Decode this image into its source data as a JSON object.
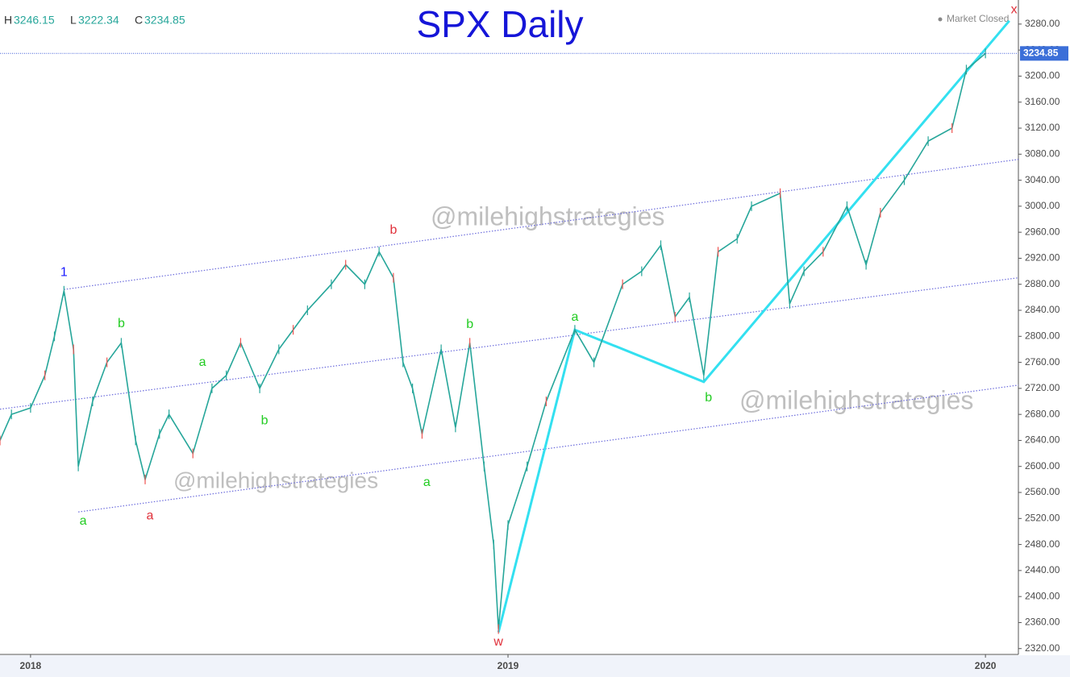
{
  "chart_data": {
    "type": "line",
    "title": "SPX Daily",
    "header": {
      "high_label": "H",
      "high": 3246.15,
      "low_label": "L",
      "low": 3222.34,
      "close_label": "C",
      "close": 3234.85
    },
    "status": "Market Closed",
    "last_price": 3234.85,
    "watermarks": [
      "@milehighstrategies",
      "@milehighstrategies",
      "@milehighstrategies"
    ],
    "x": [
      2017.936,
      2017.96,
      2018.0,
      2018.03,
      2018.05,
      2018.07,
      2018.09,
      2018.1,
      2018.13,
      2018.16,
      2018.19,
      2018.22,
      2018.24,
      2018.27,
      2018.29,
      2018.34,
      2018.38,
      2018.41,
      2018.44,
      2018.48,
      2018.52,
      2018.55,
      2018.58,
      2018.63,
      2018.66,
      2018.7,
      2018.73,
      2018.76,
      2018.78,
      2018.8,
      2018.82,
      2018.86,
      2018.89,
      2018.92,
      2018.95,
      2018.97,
      2018.98,
      2019.0,
      2019.04,
      2019.08,
      2019.14,
      2019.18,
      2019.24,
      2019.28,
      2019.32,
      2019.35,
      2019.38,
      2019.41,
      2019.44,
      2019.48,
      2019.51,
      2019.57,
      2019.59,
      2019.62,
      2019.66,
      2019.71,
      2019.75,
      2019.78,
      2019.83,
      2019.88,
      2019.93,
      2019.96,
      2020.0
    ],
    "values": [
      2640,
      2680,
      2690,
      2740,
      2800,
      2870,
      2780,
      2600,
      2700,
      2760,
      2790,
      2640,
      2580,
      2650,
      2680,
      2620,
      2720,
      2740,
      2790,
      2720,
      2780,
      2810,
      2840,
      2880,
      2910,
      2880,
      2930,
      2890,
      2760,
      2720,
      2650,
      2780,
      2660,
      2790,
      2600,
      2480,
      2350,
      2510,
      2600,
      2700,
      2810,
      2760,
      2880,
      2900,
      2940,
      2830,
      2860,
      2740,
      2930,
      2950,
      3000,
      3020,
      2850,
      2900,
      2930,
      3000,
      2910,
      2990,
      3040,
      3100,
      3120,
      3210,
      3234.85
    ],
    "color": "#26a69a",
    "xlim": [
      2017.936,
      2020.069
    ],
    "xticks": [
      2018,
      2019,
      2020
    ],
    "ylim": [
      2311,
      3317
    ],
    "yticks": [
      {
        "value": 2320,
        "label": "2320.00"
      },
      {
        "value": 2360,
        "label": "2360.00"
      },
      {
        "value": 2400,
        "label": "2400.00"
      },
      {
        "value": 2440,
        "label": "2440.00"
      },
      {
        "value": 2480,
        "label": "2480.00"
      },
      {
        "value": 2520,
        "label": "2520.00"
      },
      {
        "value": 2560,
        "label": "2560.00"
      },
      {
        "value": 2600,
        "label": "2600.00"
      },
      {
        "value": 2640,
        "label": "2640.00"
      },
      {
        "value": 2680,
        "label": "2680.00"
      },
      {
        "value": 2720,
        "label": "2720.00"
      },
      {
        "value": 2760,
        "label": "2760.00"
      },
      {
        "value": 2800,
        "label": "2800.00"
      },
      {
        "value": 2840,
        "label": "2840.00"
      },
      {
        "value": 2880,
        "label": "2880.00"
      },
      {
        "value": 2920,
        "label": "2920.00"
      },
      {
        "value": 2960,
        "label": "2960.00"
      },
      {
        "value": 3000,
        "label": "3000.00"
      },
      {
        "value": 3040,
        "label": "3040.00"
      },
      {
        "value": 3080,
        "label": "3080.00"
      },
      {
        "value": 3120,
        "label": "3120.00"
      },
      {
        "value": 3160,
        "label": "3160.00"
      },
      {
        "value": 3200,
        "label": "3200.00"
      },
      {
        "value": 3240,
        "label": "3240.00"
      },
      {
        "value": 3280,
        "label": "3280.00"
      }
    ],
    "trendlines": [
      {
        "color": "#6b6bdc",
        "style": "dotted",
        "x": [
          2018.07,
          2020.069
        ],
        "y": [
          2872,
          3072
        ]
      },
      {
        "color": "#6b6bdc",
        "style": "dotted",
        "x": [
          2017.936,
          2020.069
        ],
        "y": [
          2688,
          2890
        ]
      },
      {
        "color": "#6b6bdc",
        "style": "dotted",
        "x": [
          2018.1,
          2020.069
        ],
        "y": [
          2530,
          2725
        ]
      },
      {
        "color": "#33e0f0",
        "style": "solid",
        "x": [
          2018.98,
          2019.14,
          2019.41,
          2020.05
        ],
        "y": [
          2345,
          2810,
          2730,
          3285
        ]
      }
    ],
    "wave_labels": [
      {
        "text": "1",
        "x": 2018.07,
        "y": 2898,
        "color": "#1a1aff"
      },
      {
        "text": "a",
        "x": 2018.11,
        "y": 2516,
        "color": "#22cc22"
      },
      {
        "text": "b",
        "x": 2018.19,
        "y": 2819,
        "color": "#22cc22"
      },
      {
        "text": "a",
        "x": 2018.25,
        "y": 2524,
        "color": "#e0303a"
      },
      {
        "text": "a",
        "x": 2018.36,
        "y": 2760,
        "color": "#22cc22"
      },
      {
        "text": "b",
        "x": 2018.49,
        "y": 2670,
        "color": "#22cc22"
      },
      {
        "text": "b",
        "x": 2018.76,
        "y": 2963,
        "color": "#e0303a"
      },
      {
        "text": "a",
        "x": 2018.83,
        "y": 2575,
        "color": "#22cc22"
      },
      {
        "text": "b",
        "x": 2018.92,
        "y": 2818,
        "color": "#22cc22"
      },
      {
        "text": "w",
        "x": 2018.98,
        "y": 2330,
        "color": "#e0303a"
      },
      {
        "text": "a",
        "x": 2019.14,
        "y": 2829,
        "color": "#22cc22"
      },
      {
        "text": "b",
        "x": 2019.42,
        "y": 2705,
        "color": "#22cc22"
      },
      {
        "text": "x",
        "x": 2020.06,
        "y": 3302,
        "color": "#e0303a"
      }
    ]
  }
}
